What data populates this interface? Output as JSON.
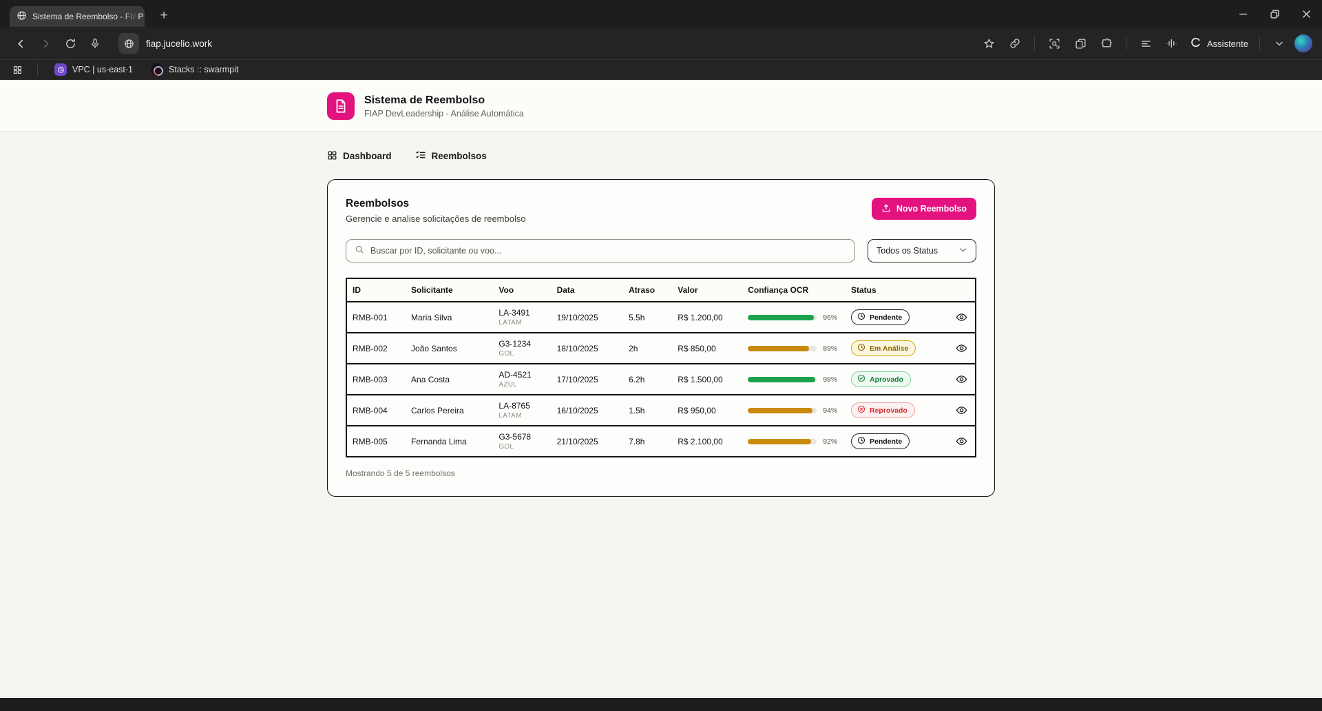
{
  "browser": {
    "tab_title": "Sistema de Reembolso - FIAP",
    "url": "fiap.jucelio.work",
    "assistant_label": "Assistente",
    "bookmarks": [
      {
        "label": "VPC | us-east-1"
      },
      {
        "label": "Stacks :: swarmpit"
      }
    ]
  },
  "icons": {
    "tab-favicon": "globe-icon",
    "toolbar": [
      "back-icon",
      "forward-icon",
      "reload-icon",
      "mic-icon",
      "star-icon",
      "link-icon",
      "screenshot-icon",
      "collections-icon",
      "extensions-icon",
      "menu-lines-icon",
      "equalizer-icon",
      "copilot-icon",
      "chevron-down-icon",
      "avatar"
    ],
    "window": [
      "minimize-icon",
      "restore-icon",
      "close-icon"
    ],
    "bookmarks-bar": [
      "apps-grid-icon"
    ],
    "status": {
      "pendente": "clock-icon",
      "analise": "clock-icon",
      "aprovado": "check-circle-icon",
      "reprovado": "x-circle-icon"
    }
  },
  "colors": {
    "accent_pink": "#e3127e",
    "bar_green": "#1ca24e",
    "bar_amber": "#c9890b",
    "delay_green": "#16a34a",
    "delay_red": "#dc2626",
    "chrome_dark": "#242424",
    "page_bg": "#f5f5f1"
  },
  "app": {
    "header": {
      "title": "Sistema de Reembolso",
      "subtitle": "FIAP DevLeadership - Análise Automática"
    },
    "nav": [
      {
        "label": "Dashboard"
      },
      {
        "label": "Reembolsos"
      }
    ],
    "card": {
      "title": "Reembolsos",
      "subtitle": "Gerencie e analise solicitações de reembolso",
      "new_button": "Novo Reembolso",
      "search_placeholder": "Buscar por ID, solicitante ou voo...",
      "status_filter_value": "Todos os Status",
      "table": {
        "columns": [
          "ID",
          "Solicitante",
          "Voo",
          "Data",
          "Atraso",
          "Valor",
          "Confiança OCR",
          "Status"
        ],
        "rows": [
          {
            "id": "RMB-001",
            "solicitante": "Maria Silva",
            "voo": "LA-3491",
            "companhia": "LATAM",
            "data": "19/10/2025",
            "atraso": "5.5h",
            "atraso_tone": "green",
            "valor": "R$ 1.200,00",
            "confianca_pct": 96,
            "confianca_label": "96%",
            "bar_tone": "green",
            "status": "Pendente",
            "status_type": "pendente"
          },
          {
            "id": "RMB-002",
            "solicitante": "João Santos",
            "voo": "G3-1234",
            "companhia": "GOL",
            "data": "18/10/2025",
            "atraso": "2h",
            "atraso_tone": "red",
            "valor": "R$ 850,00",
            "confianca_pct": 89,
            "confianca_label": "89%",
            "bar_tone": "amber",
            "status": "Em Análise",
            "status_type": "analise"
          },
          {
            "id": "RMB-003",
            "solicitante": "Ana Costa",
            "voo": "AD-4521",
            "companhia": "AZUL",
            "data": "17/10/2025",
            "atraso": "6.2h",
            "atraso_tone": "green",
            "valor": "R$ 1.500,00",
            "confianca_pct": 98,
            "confianca_label": "98%",
            "bar_tone": "green",
            "status": "Aprovado",
            "status_type": "aprovado"
          },
          {
            "id": "RMB-004",
            "solicitante": "Carlos Pereira",
            "voo": "LA-8765",
            "companhia": "LATAM",
            "data": "16/10/2025",
            "atraso": "1.5h",
            "atraso_tone": "red",
            "valor": "R$ 950,00",
            "confianca_pct": 94,
            "confianca_label": "94%",
            "bar_tone": "amber",
            "status": "Reprovado",
            "status_type": "reprovado"
          },
          {
            "id": "RMB-005",
            "solicitante": "Fernanda Lima",
            "voo": "G3-5678",
            "companhia": "GOL",
            "data": "21/10/2025",
            "atraso": "7.8h",
            "atraso_tone": "green",
            "valor": "R$ 2.100,00",
            "confianca_pct": 92,
            "confianca_label": "92%",
            "bar_tone": "amber",
            "status": "Pendente",
            "status_type": "pendente"
          }
        ]
      },
      "footer": "Mostrando 5 de 5 reembolsos"
    }
  }
}
